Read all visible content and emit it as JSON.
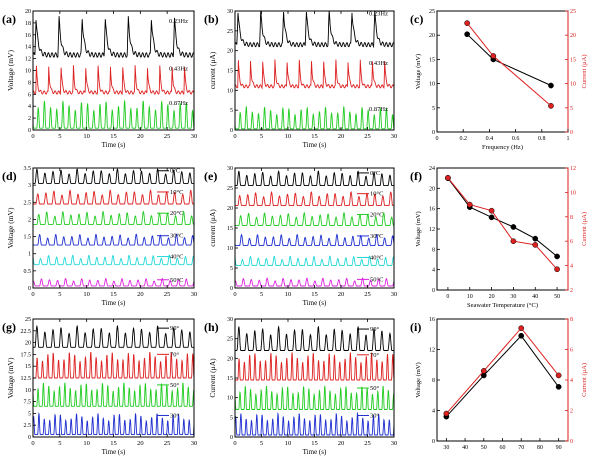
{
  "chart_data": [
    {
      "id": "a",
      "panel_label": "(a)",
      "type": "line",
      "xlabel": "Time (s)",
      "ylabel": "Voltage (mV)",
      "xlim": [
        0,
        30
      ],
      "ylim": [
        0,
        20
      ],
      "xticks": [
        0,
        5,
        10,
        15,
        20,
        25,
        30
      ],
      "yticks": [
        0,
        2,
        4,
        6,
        8,
        10,
        12,
        14,
        16,
        18,
        20
      ],
      "series": [
        {
          "name": "0.23Hz",
          "color": "#000000",
          "base": 12.6,
          "amp": 6.2,
          "period": 4.3,
          "sharp": true
        },
        {
          "name": "0.43Hz",
          "color": "#dd2020",
          "base": 6.3,
          "amp": 4.4,
          "period": 2.3,
          "sharp": true
        },
        {
          "name": "0.87Hz",
          "color": "#22cc22",
          "base": 0.3,
          "amp": 4.6,
          "period": 1.15,
          "sharp": false
        }
      ]
    },
    {
      "id": "b",
      "panel_label": "(b)",
      "type": "line",
      "xlabel": "Time (s)",
      "ylabel": "current (μA)",
      "xlim": [
        0,
        30
      ],
      "ylim": [
        0,
        30
      ],
      "xticks": [
        0,
        5,
        10,
        15,
        20,
        25,
        30
      ],
      "yticks": [
        0,
        5,
        10,
        15,
        20,
        25,
        30
      ],
      "series": [
        {
          "name": "0.23Hz",
          "color": "#000000",
          "base": 21.5,
          "amp": 8.5,
          "period": 4.3,
          "sharp": true
        },
        {
          "name": "0.43Hz",
          "color": "#dd2020",
          "base": 11.0,
          "amp": 6.5,
          "period": 2.3,
          "sharp": true
        },
        {
          "name": "0.87Hz",
          "color": "#22cc22",
          "base": 0.3,
          "amp": 5.5,
          "period": 1.15,
          "sharp": false
        }
      ]
    },
    {
      "id": "c",
      "panel_label": "(c)",
      "type": "dual_axis_line",
      "xlabel": "Frequency (Hz)",
      "ylabel": "Voltage (mV)",
      "y2label": "Current (μA)",
      "xlim": [
        0.0,
        1.0
      ],
      "ylim": [
        0,
        25
      ],
      "y2lim": [
        0,
        25
      ],
      "xticks": [
        0.0,
        0.2,
        0.4,
        0.6,
        0.8,
        1.0
      ],
      "yticks": [
        0,
        5,
        10,
        15,
        20,
        25
      ],
      "y2ticks": [
        0,
        5,
        10,
        15,
        20,
        25
      ],
      "x": [
        0.23,
        0.43,
        0.87
      ],
      "series": [
        {
          "name": "Voltage",
          "axis": "left",
          "color": "#000000",
          "values": [
            20.2,
            15.0,
            9.6
          ]
        },
        {
          "name": "Current",
          "axis": "right",
          "color": "#dd2020",
          "values": [
            22.5,
            15.7,
            5.4
          ]
        }
      ]
    },
    {
      "id": "d",
      "panel_label": "(d)",
      "type": "line",
      "xlabel": "Time (s)",
      "ylabel": "Voltage (mV)",
      "xlim": [
        0,
        30
      ],
      "ylim": [
        0,
        3.5
      ],
      "xticks": [
        0,
        5,
        10,
        15,
        20,
        25,
        30
      ],
      "yticks": [
        0.0,
        0.5,
        1.0,
        1.5,
        2.0,
        2.5,
        3.0,
        3.5
      ],
      "series": [
        {
          "name": "0°C",
          "color": "#000000",
          "base": 3.05,
          "amp": 0.42,
          "period": 1.5,
          "sharp": false
        },
        {
          "name": "10°C",
          "color": "#dd2020",
          "base": 2.45,
          "amp": 0.4,
          "period": 1.5,
          "sharp": false
        },
        {
          "name": "20°C",
          "color": "#22cc22",
          "base": 1.85,
          "amp": 0.38,
          "period": 1.5,
          "sharp": false
        },
        {
          "name": "30°C",
          "color": "#1f2fd0",
          "base": 1.25,
          "amp": 0.32,
          "period": 1.5,
          "sharp": false
        },
        {
          "name": "40°C",
          "color": "#22d8d8",
          "base": 0.68,
          "amp": 0.28,
          "period": 1.5,
          "sharp": false
        },
        {
          "name": "50°C",
          "color": "#dd22dd",
          "base": 0.06,
          "amp": 0.22,
          "period": 1.5,
          "sharp": false
        }
      ]
    },
    {
      "id": "e",
      "panel_label": "(e)",
      "type": "line",
      "xlabel": "Time (s)",
      "ylabel": "current (μA)",
      "xlim": [
        0,
        30
      ],
      "ylim": [
        0,
        30
      ],
      "xticks": [
        0,
        5,
        10,
        15,
        20,
        25,
        30
      ],
      "yticks": [
        0,
        5,
        10,
        15,
        20,
        25,
        30
      ],
      "series": [
        {
          "name": "0°C",
          "color": "#000000",
          "base": 25.6,
          "amp": 3.6,
          "period": 1.5,
          "sharp": false
        },
        {
          "name": "10°C",
          "color": "#dd2020",
          "base": 20.6,
          "amp": 3.4,
          "period": 1.5,
          "sharp": false
        },
        {
          "name": "20°C",
          "color": "#22cc22",
          "base": 15.6,
          "amp": 3.2,
          "period": 1.5,
          "sharp": false
        },
        {
          "name": "30°C",
          "color": "#1f2fd0",
          "base": 10.6,
          "amp": 2.8,
          "period": 1.5,
          "sharp": false
        },
        {
          "name": "40°C",
          "color": "#22d8d8",
          "base": 5.6,
          "amp": 2.4,
          "period": 1.5,
          "sharp": false
        },
        {
          "name": "50°C",
          "color": "#dd22dd",
          "base": 0.5,
          "amp": 2.0,
          "period": 1.5,
          "sharp": false
        }
      ]
    },
    {
      "id": "f",
      "panel_label": "(f)",
      "type": "dual_axis_line",
      "xlabel": "Seawater Temperature (°C)",
      "ylabel": "Voltage (mV)",
      "y2label": "Current (μA)",
      "xlim": [
        -5,
        55
      ],
      "ylim": [
        0,
        24
      ],
      "y2lim": [
        2,
        12
      ],
      "xticks": [
        0,
        10,
        20,
        30,
        40,
        50
      ],
      "yticks": [
        0,
        4,
        8,
        12,
        16,
        20,
        24
      ],
      "y2ticks": [
        2,
        4,
        6,
        8,
        10,
        12
      ],
      "x": [
        0,
        10,
        20,
        30,
        40,
        50
      ],
      "series": [
        {
          "name": "Voltage",
          "axis": "left",
          "color": "#000000",
          "values": [
            22.0,
            16.3,
            14.3,
            12.4,
            10.1,
            6.6
          ]
        },
        {
          "name": "Current",
          "axis": "right",
          "color": "#dd2020",
          "values": [
            11.2,
            9.0,
            8.5,
            6.0,
            5.7,
            3.7
          ]
        }
      ]
    },
    {
      "id": "g",
      "panel_label": "(g)",
      "type": "line",
      "xlabel": "Time (s)",
      "ylabel": "Voltage (mV)",
      "xlim": [
        0,
        30
      ],
      "ylim": [
        0,
        25
      ],
      "xticks": [
        0,
        5,
        10,
        15,
        20,
        25,
        30
      ],
      "yticks": [
        0,
        2.5,
        5.0,
        7.5,
        10.0,
        12.5,
        15.0,
        17.5,
        20.0,
        22.5,
        25.0
      ],
      "series": [
        {
          "name": "90°",
          "color": "#000000",
          "base": 19.0,
          "amp": 4.5,
          "period": 1.5,
          "sharp": false
        },
        {
          "name": "70°",
          "color": "#dd2020",
          "base": 12.5,
          "amp": 5.5,
          "period": 1.0,
          "sharp": false
        },
        {
          "name": "50°",
          "color": "#22cc22",
          "base": 6.5,
          "amp": 5.0,
          "period": 1.0,
          "sharp": false
        },
        {
          "name": "30°",
          "color": "#1f2fd0",
          "base": 0.5,
          "amp": 4.5,
          "period": 1.0,
          "sharp": false
        }
      ]
    },
    {
      "id": "h",
      "panel_label": "(h)",
      "type": "line",
      "xlabel": "Time (s)",
      "ylabel": "Current (μA)",
      "xlim": [
        0,
        30
      ],
      "ylim": [
        0,
        30
      ],
      "xticks": [
        0,
        5,
        10,
        15,
        20,
        25,
        30
      ],
      "yticks": [
        0,
        5,
        10,
        15,
        20,
        25,
        30
      ],
      "series": [
        {
          "name": "90°",
          "color": "#000000",
          "base": 22.0,
          "amp": 6.0,
          "period": 1.5,
          "sharp": false
        },
        {
          "name": "70°",
          "color": "#dd2020",
          "base": 14.5,
          "amp": 7.0,
          "period": 1.0,
          "sharp": false
        },
        {
          "name": "50°",
          "color": "#22cc22",
          "base": 7.0,
          "amp": 6.0,
          "period": 1.0,
          "sharp": false
        },
        {
          "name": "30°",
          "color": "#1f2fd0",
          "base": 0.5,
          "amp": 5.5,
          "period": 1.0,
          "sharp": false
        }
      ]
    },
    {
      "id": "i",
      "panel_label": "(i)",
      "type": "dual_axis_line",
      "xlabel": "",
      "ylabel": "Voltage (mV)",
      "y2label": "Current (μA)",
      "xlim": [
        25,
        95
      ],
      "ylim": [
        0,
        16
      ],
      "y2lim": [
        0,
        8
      ],
      "xticks": [
        30,
        40,
        50,
        60,
        70,
        80,
        90
      ],
      "yticks": [
        0,
        4,
        8,
        12,
        16
      ],
      "y2ticks": [
        0,
        2,
        4,
        6,
        8
      ],
      "x": [
        30,
        50,
        70,
        90
      ],
      "series": [
        {
          "name": "Voltage",
          "axis": "left",
          "color": "#000000",
          "values": [
            3.2,
            8.6,
            13.8,
            7.1
          ]
        },
        {
          "name": "Current",
          "axis": "right",
          "color": "#dd2020",
          "values": [
            1.8,
            4.6,
            7.4,
            4.3
          ]
        }
      ]
    }
  ]
}
